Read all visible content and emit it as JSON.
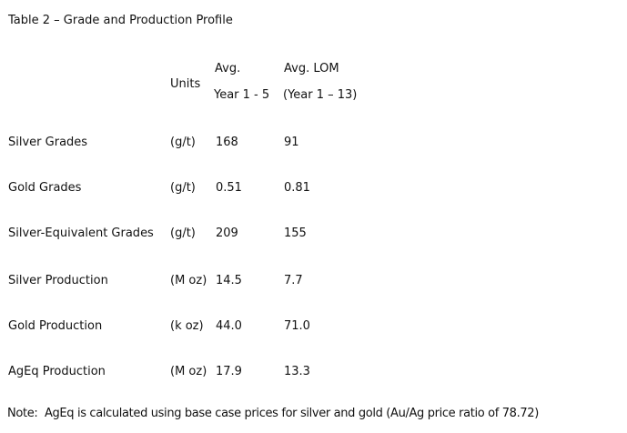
{
  "document": {
    "title": "Table 2 – Grade and Production Profile",
    "note": "Note:  AgEq is calculated using base case prices for silver and gold (Au/Ag price ratio of 78.72)"
  },
  "table": {
    "header": {
      "units": "Units",
      "avg_line1": "Avg.",
      "avg_line2": "Year 1 - 5",
      "lom_line1": "Avg. LOM",
      "lom_line2": "(Year 1 – 13)"
    },
    "rows": [
      {
        "label": "Silver Grades",
        "units": "(g/t)",
        "avg_y1_5": "168",
        "avg_lom": "91"
      },
      {
        "label": "Gold Grades",
        "units": "(g/t)",
        "avg_y1_5": "0.51",
        "avg_lom": "0.81"
      },
      {
        "label": "Silver-Equivalent Grades",
        "units": "(g/t)",
        "avg_y1_5": "209",
        "avg_lom": "155"
      },
      {
        "label": "Silver Production",
        "units": "(M oz)",
        "avg_y1_5": "14.5",
        "avg_lom": "7.7"
      },
      {
        "label": "Gold Production",
        "units": "(k oz)",
        "avg_y1_5": "44.0",
        "avg_lom": "71.0"
      },
      {
        "label": "AgEq Production",
        "units": "(M oz)",
        "avg_y1_5": "17.9",
        "avg_lom": "13.3"
      }
    ]
  }
}
